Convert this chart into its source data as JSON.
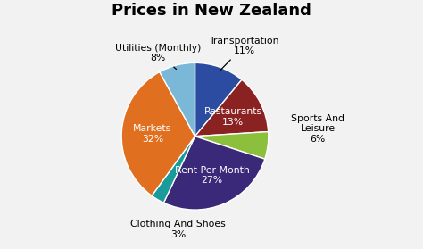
{
  "title": "Prices in New Zealand",
  "categories": [
    "Transportation",
    "Restaurants",
    "Sports And\nLeisure",
    "Rent Per Month",
    "Clothing And Shoes",
    "Markets",
    "Utilities (Monthly)"
  ],
  "values": [
    11,
    13,
    6,
    27,
    3,
    32,
    8
  ],
  "colors": [
    "#2B4CA0",
    "#8B2222",
    "#8BBF3C",
    "#3A2878",
    "#1A9A9A",
    "#E07020",
    "#7BB8D8"
  ],
  "background_color": "#f2f2f2",
  "title_fontsize": 13,
  "label_fontsize": 7.8,
  "inside_indices": [
    1,
    3,
    5
  ],
  "outside_with_arrow": [
    0,
    6
  ],
  "outside_no_arrow": [
    2,
    4
  ]
}
